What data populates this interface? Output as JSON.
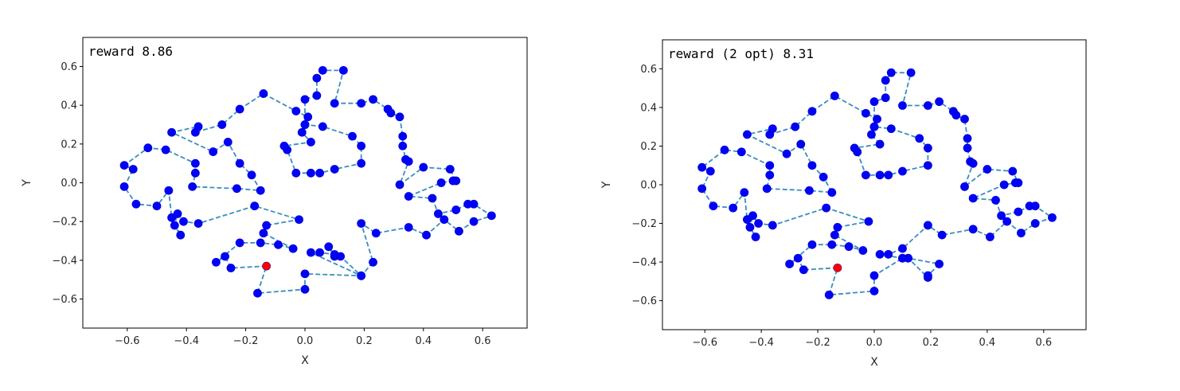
{
  "colors": {
    "point": "#0000ff",
    "point_edge": "#0000cc",
    "start": "#ff0000",
    "path": "#3a8ebf",
    "axes": "#000000"
  },
  "chart_data": [
    {
      "type": "scatter",
      "annotation": "reward 8.86",
      "xlabel": "X",
      "ylabel": "Y",
      "xlim": [
        -0.75,
        0.75
      ],
      "ylim": [
        -0.75,
        0.75
      ],
      "xticks": [
        "−0.6",
        "−0.4",
        "−0.2",
        "0.0",
        "0.2",
        "0.4",
        "0.6"
      ],
      "xtick_values": [
        -0.6,
        -0.4,
        -0.2,
        0.0,
        0.2,
        0.4,
        0.6
      ],
      "yticks": [
        "0.6",
        "0.4",
        "0.2",
        "0.0",
        "−0.2",
        "−0.4",
        "−0.6"
      ],
      "ytick_values": [
        0.6,
        0.4,
        0.2,
        0.0,
        -0.2,
        -0.4,
        -0.6
      ],
      "start_point": [
        -0.13,
        -0.43
      ],
      "route": [
        [
          -0.13,
          -0.43
        ],
        [
          -0.25,
          -0.44
        ],
        [
          -0.27,
          -0.38
        ],
        [
          -0.3,
          -0.41
        ],
        [
          -0.22,
          -0.31
        ],
        [
          -0.15,
          -0.31
        ],
        [
          -0.09,
          -0.32
        ],
        [
          -0.04,
          -0.34
        ],
        [
          -0.14,
          -0.26
        ],
        [
          -0.13,
          -0.22
        ],
        [
          -0.02,
          -0.19
        ],
        [
          -0.17,
          -0.12
        ],
        [
          -0.36,
          -0.21
        ],
        [
          -0.41,
          -0.2
        ],
        [
          -0.43,
          -0.16
        ],
        [
          -0.44,
          -0.22
        ],
        [
          -0.42,
          -0.27
        ],
        [
          -0.45,
          -0.18
        ],
        [
          -0.46,
          -0.04
        ],
        [
          -0.5,
          -0.12
        ],
        [
          -0.57,
          -0.11
        ],
        [
          -0.61,
          -0.02
        ],
        [
          -0.58,
          0.07
        ],
        [
          -0.61,
          0.09
        ],
        [
          -0.53,
          0.18
        ],
        [
          -0.47,
          0.17
        ],
        [
          -0.37,
          0.1
        ],
        [
          -0.37,
          0.05
        ],
        [
          -0.38,
          -0.02
        ],
        [
          -0.23,
          -0.03
        ],
        [
          -0.15,
          -0.04
        ],
        [
          -0.18,
          0.04
        ],
        [
          -0.22,
          0.1
        ],
        [
          -0.26,
          0.21
        ],
        [
          -0.31,
          0.16
        ],
        [
          -0.45,
          0.26
        ],
        [
          -0.36,
          0.29
        ],
        [
          -0.37,
          0.26
        ],
        [
          -0.28,
          0.3
        ],
        [
          -0.22,
          0.38
        ],
        [
          -0.14,
          0.46
        ],
        [
          -0.03,
          0.37
        ],
        [
          0.01,
          0.34
        ],
        [
          0.0,
          0.3
        ],
        [
          0.06,
          0.29
        ],
        [
          0.16,
          0.24
        ],
        [
          0.19,
          0.19
        ],
        [
          0.19,
          0.1
        ],
        [
          0.1,
          0.07
        ],
        [
          0.05,
          0.05
        ],
        [
          0.02,
          0.05
        ],
        [
          -0.03,
          0.05
        ],
        [
          -0.06,
          0.17
        ],
        [
          -0.07,
          0.19
        ],
        [
          0.02,
          0.21
        ],
        [
          -0.01,
          0.26
        ],
        [
          0.0,
          0.3
        ],
        [
          0.0,
          0.43
        ],
        [
          0.04,
          0.45
        ],
        [
          0.04,
          0.54
        ],
        [
          0.06,
          0.58
        ],
        [
          0.13,
          0.58
        ],
        [
          0.1,
          0.41
        ],
        [
          0.19,
          0.41
        ],
        [
          0.23,
          0.43
        ],
        [
          0.28,
          0.38
        ],
        [
          0.29,
          0.36
        ],
        [
          0.32,
          0.34
        ],
        [
          0.33,
          0.24
        ],
        [
          0.33,
          0.19
        ],
        [
          0.34,
          0.12
        ],
        [
          0.35,
          0.11
        ],
        [
          0.32,
          -0.01
        ],
        [
          0.4,
          0.08
        ],
        [
          0.49,
          0.07
        ],
        [
          0.51,
          0.01
        ],
        [
          0.5,
          0.01
        ],
        [
          0.46,
          0.0
        ],
        [
          0.35,
          -0.07
        ],
        [
          0.43,
          -0.08
        ],
        [
          0.45,
          -0.16
        ],
        [
          0.51,
          -0.14
        ],
        [
          0.55,
          -0.11
        ],
        [
          0.57,
          -0.11
        ],
        [
          0.63,
          -0.17
        ],
        [
          0.57,
          -0.2
        ],
        [
          0.52,
          -0.25
        ],
        [
          0.47,
          -0.19
        ],
        [
          0.41,
          -0.27
        ],
        [
          0.35,
          -0.23
        ],
        [
          0.24,
          -0.26
        ],
        [
          0.19,
          -0.21
        ],
        [
          0.23,
          -0.41
        ],
        [
          0.19,
          -0.48
        ],
        [
          0.12,
          -0.38
        ],
        [
          0.1,
          -0.38
        ],
        [
          0.08,
          -0.33
        ],
        [
          0.1,
          -0.37
        ],
        [
          0.05,
          -0.36
        ],
        [
          0.02,
          -0.36
        ],
        [
          0.19,
          -0.48
        ],
        [
          0.0,
          -0.47
        ],
        [
          0.0,
          -0.55
        ],
        [
          -0.16,
          -0.57
        ],
        [
          -0.13,
          -0.43
        ]
      ]
    },
    {
      "type": "scatter",
      "annotation": "reward (2 opt) 8.31",
      "xlabel": "X",
      "ylabel": "Y",
      "xlim": [
        -0.75,
        0.75
      ],
      "ylim": [
        -0.75,
        0.75
      ],
      "xticks": [
        "−0.6",
        "−0.4",
        "−0.2",
        "0.0",
        "0.2",
        "0.4",
        "0.6"
      ],
      "xtick_values": [
        -0.6,
        -0.4,
        -0.2,
        0.0,
        0.2,
        0.4,
        0.6
      ],
      "yticks": [
        "0.6",
        "0.4",
        "0.2",
        "0.0",
        "−0.2",
        "−0.4",
        "−0.6"
      ],
      "ytick_values": [
        0.6,
        0.4,
        0.2,
        0.0,
        -0.2,
        -0.4,
        -0.6
      ],
      "start_point": [
        -0.13,
        -0.43
      ],
      "route": [
        [
          -0.13,
          -0.43
        ],
        [
          -0.25,
          -0.44
        ],
        [
          -0.27,
          -0.38
        ],
        [
          -0.3,
          -0.41
        ],
        [
          -0.22,
          -0.31
        ],
        [
          -0.15,
          -0.31
        ],
        [
          -0.09,
          -0.32
        ],
        [
          -0.04,
          -0.34
        ],
        [
          -0.14,
          -0.26
        ],
        [
          -0.13,
          -0.22
        ],
        [
          -0.02,
          -0.19
        ],
        [
          -0.17,
          -0.12
        ],
        [
          -0.36,
          -0.21
        ],
        [
          -0.41,
          -0.2
        ],
        [
          -0.43,
          -0.16
        ],
        [
          -0.44,
          -0.22
        ],
        [
          -0.42,
          -0.27
        ],
        [
          -0.45,
          -0.18
        ],
        [
          -0.46,
          -0.04
        ],
        [
          -0.5,
          -0.12
        ],
        [
          -0.57,
          -0.11
        ],
        [
          -0.61,
          -0.02
        ],
        [
          -0.58,
          0.07
        ],
        [
          -0.61,
          0.09
        ],
        [
          -0.53,
          0.18
        ],
        [
          -0.47,
          0.17
        ],
        [
          -0.37,
          0.1
        ],
        [
          -0.37,
          0.05
        ],
        [
          -0.38,
          -0.02
        ],
        [
          -0.23,
          -0.03
        ],
        [
          -0.15,
          -0.04
        ],
        [
          -0.18,
          0.04
        ],
        [
          -0.22,
          0.1
        ],
        [
          -0.26,
          0.21
        ],
        [
          -0.31,
          0.16
        ],
        [
          -0.45,
          0.26
        ],
        [
          -0.36,
          0.29
        ],
        [
          -0.37,
          0.26
        ],
        [
          -0.28,
          0.3
        ],
        [
          -0.22,
          0.38
        ],
        [
          -0.14,
          0.46
        ],
        [
          -0.03,
          0.37
        ],
        [
          0.01,
          0.34
        ],
        [
          0.0,
          0.3
        ],
        [
          0.06,
          0.29
        ],
        [
          0.16,
          0.24
        ],
        [
          0.19,
          0.19
        ],
        [
          0.19,
          0.1
        ],
        [
          0.1,
          0.07
        ],
        [
          0.05,
          0.05
        ],
        [
          0.02,
          0.05
        ],
        [
          -0.03,
          0.05
        ],
        [
          -0.06,
          0.17
        ],
        [
          -0.07,
          0.19
        ],
        [
          0.02,
          0.21
        ],
        [
          -0.01,
          0.26
        ],
        [
          0.0,
          0.3
        ],
        [
          0.0,
          0.43
        ],
        [
          0.04,
          0.45
        ],
        [
          0.04,
          0.54
        ],
        [
          0.06,
          0.58
        ],
        [
          0.13,
          0.58
        ],
        [
          0.1,
          0.41
        ],
        [
          0.19,
          0.41
        ],
        [
          0.23,
          0.43
        ],
        [
          0.28,
          0.38
        ],
        [
          0.29,
          0.36
        ],
        [
          0.32,
          0.34
        ],
        [
          0.33,
          0.24
        ],
        [
          0.33,
          0.19
        ],
        [
          0.34,
          0.12
        ],
        [
          0.35,
          0.11
        ],
        [
          0.32,
          -0.01
        ],
        [
          0.4,
          0.08
        ],
        [
          0.49,
          0.07
        ],
        [
          0.51,
          0.01
        ],
        [
          0.5,
          0.01
        ],
        [
          0.46,
          0.0
        ],
        [
          0.35,
          -0.07
        ],
        [
          0.43,
          -0.08
        ],
        [
          0.45,
          -0.16
        ],
        [
          0.51,
          -0.14
        ],
        [
          0.55,
          -0.11
        ],
        [
          0.57,
          -0.11
        ],
        [
          0.63,
          -0.17
        ],
        [
          0.57,
          -0.2
        ],
        [
          0.52,
          -0.25
        ],
        [
          0.47,
          -0.19
        ],
        [
          0.41,
          -0.27
        ],
        [
          0.35,
          -0.23
        ],
        [
          0.24,
          -0.26
        ],
        [
          0.19,
          -0.21
        ],
        [
          0.1,
          -0.33
        ],
        [
          0.05,
          -0.36
        ],
        [
          0.02,
          -0.36
        ],
        [
          0.1,
          -0.38
        ],
        [
          0.12,
          -0.38
        ],
        [
          0.19,
          -0.48
        ],
        [
          0.19,
          -0.47
        ],
        [
          0.23,
          -0.41
        ],
        [
          0.12,
          -0.38
        ],
        [
          0.1,
          -0.38
        ],
        [
          0.0,
          -0.47
        ],
        [
          0.0,
          -0.55
        ],
        [
          -0.16,
          -0.57
        ],
        [
          -0.13,
          -0.43
        ]
      ]
    }
  ]
}
